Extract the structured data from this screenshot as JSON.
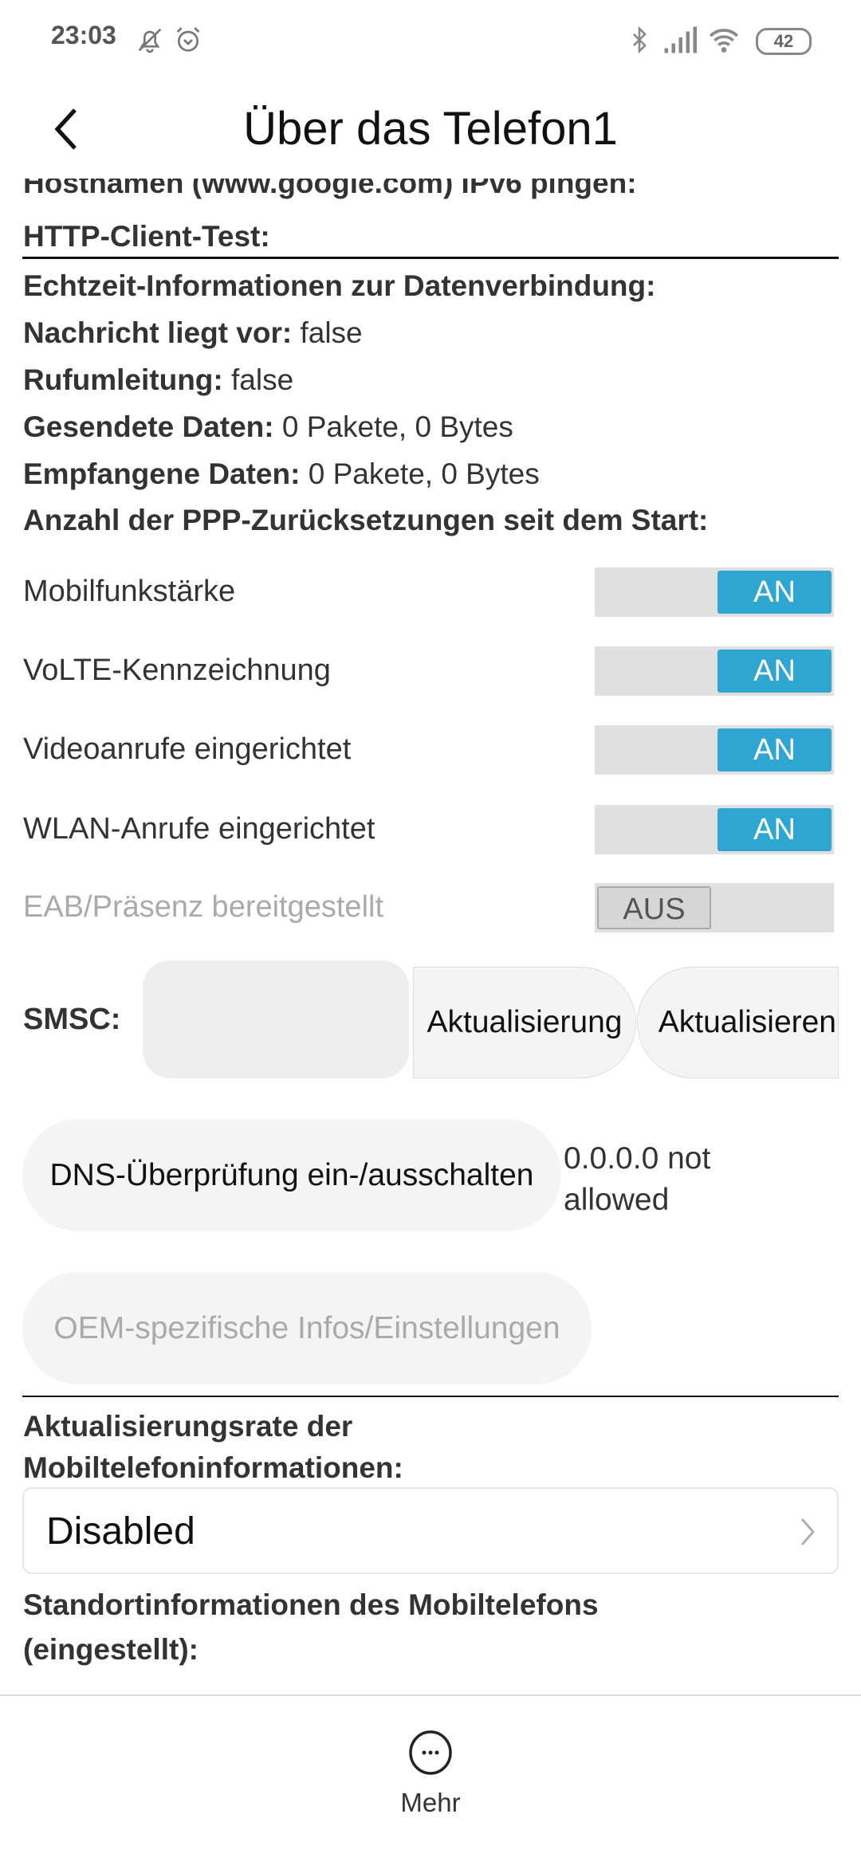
{
  "status_bar": {
    "time": "23:03",
    "battery": "42",
    "icons": [
      "bell-off-icon",
      "alarm-icon",
      "bluetooth-icon",
      "signal-icon",
      "wifi-icon",
      "battery-icon"
    ]
  },
  "header": {
    "title": "Über das Telefon1",
    "back_icon": "chevron-left-icon"
  },
  "info": {
    "cut_line": "Hostnamen (www.google.com) IPv6 pingen:",
    "http_test": "HTTP-Client-Test:",
    "realtime_heading": "Echtzeit-Informationen zur Datenverbindung:",
    "rows": [
      {
        "label": "Nachricht liegt vor:",
        "value": "false"
      },
      {
        "label": "Rufumleitung:",
        "value": "false"
      },
      {
        "label": "Gesendete Daten:",
        "value": "0 Pakete, 0 Bytes"
      },
      {
        "label": "Empfangene Daten:",
        "value": "0 Pakete, 0 Bytes"
      }
    ],
    "ppp_resets": "Anzahl der PPP-Zurücksetzungen seit dem Start:"
  },
  "toggles": [
    {
      "label": "Mobilfunkstärke",
      "state": "AN",
      "on": true,
      "enabled": true
    },
    {
      "label": "VoLTE-Kennzeichnung",
      "state": "AN",
      "on": true,
      "enabled": true
    },
    {
      "label": "Videoanrufe eingerichtet",
      "state": "AN",
      "on": true,
      "enabled": true
    },
    {
      "label": "WLAN-Anrufe eingerichtet",
      "state": "AN",
      "on": true,
      "enabled": true
    },
    {
      "label": "EAB/Präsenz bereitgestellt",
      "state": "AUS",
      "on": false,
      "enabled": false
    }
  ],
  "smsc": {
    "label": "SMSC:",
    "value": "",
    "update_button": "Aktualisierung",
    "refresh_button": "Aktualisieren"
  },
  "dns": {
    "button": "DNS-Überprüfung ein-/ausschalten",
    "status": "0.0.0.0 not allowed"
  },
  "oem": {
    "button": "OEM-spezifische Infos/Einstellungen"
  },
  "refresh_rate": {
    "label": "Aktualisierungsrate der Mobiltelefoninformationen:",
    "selected": "Disabled"
  },
  "location": {
    "label": "Standortinformationen des Mobiltelefons (eingestellt):"
  },
  "bottom_bar": {
    "more_label": "Mehr"
  },
  "colors": {
    "accent": "#2fa6d1",
    "toggle_track": "#e0e0e0",
    "button_bg": "#f4f4f4"
  }
}
